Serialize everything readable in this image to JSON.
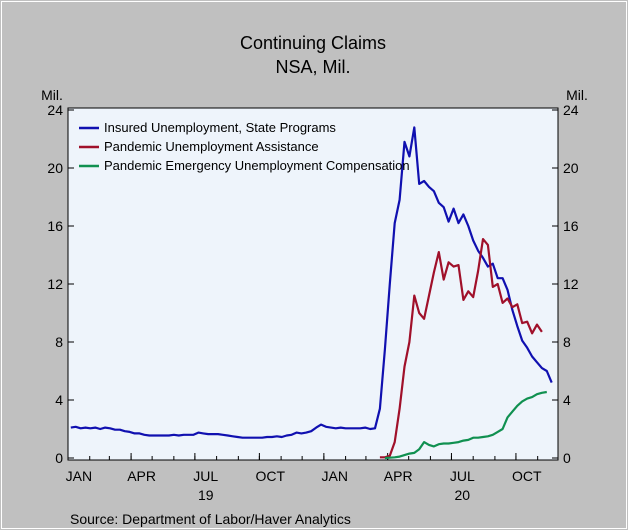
{
  "chart_data": {
    "type": "line",
    "title": "Continuing Claims",
    "subtitle": "NSA, Mil.",
    "left_unit": "Mil.",
    "right_unit": "Mil.",
    "source": "Source:  Department of Labor/Haver Analytics",
    "ylim": [
      0,
      24
    ],
    "yticks": [
      "0",
      "4",
      "8",
      "12",
      "16",
      "20",
      "24"
    ],
    "x_range": [
      "2019-01-01",
      "2020-11-30"
    ],
    "x_ticks": [
      {
        "date": "2019-01-01",
        "label": "JAN"
      },
      {
        "date": "2019-04-01",
        "label": "APR"
      },
      {
        "date": "2019-07-01",
        "label": "JUL"
      },
      {
        "date": "2019-10-01",
        "label": "OCT"
      },
      {
        "date": "2020-01-01",
        "label": "JAN"
      },
      {
        "date": "2020-04-01",
        "label": "APR"
      },
      {
        "date": "2020-07-01",
        "label": "JUL"
      },
      {
        "date": "2020-10-01",
        "label": "OCT"
      }
    ],
    "year_labels": [
      {
        "date": "2019-07-01",
        "label": "19"
      },
      {
        "date": "2020-07-01",
        "label": "20"
      }
    ],
    "plot_background": "#eef4fb",
    "grid": false,
    "legend_position": "top-left",
    "series": [
      {
        "name": "Insured Unemployment, State Programs",
        "color": "#1010b0",
        "points": [
          [
            "2019-01-05",
            2.1
          ],
          [
            "2019-01-12",
            2.15
          ],
          [
            "2019-01-19",
            2.05
          ],
          [
            "2019-01-26",
            2.1
          ],
          [
            "2019-02-02",
            2.05
          ],
          [
            "2019-02-09",
            2.1
          ],
          [
            "2019-02-16",
            2.0
          ],
          [
            "2019-02-23",
            2.1
          ],
          [
            "2019-03-02",
            2.05
          ],
          [
            "2019-03-09",
            1.95
          ],
          [
            "2019-03-16",
            1.95
          ],
          [
            "2019-03-23",
            1.85
          ],
          [
            "2019-03-30",
            1.8
          ],
          [
            "2019-04-06",
            1.7
          ],
          [
            "2019-04-13",
            1.7
          ],
          [
            "2019-04-20",
            1.6
          ],
          [
            "2019-04-27",
            1.55
          ],
          [
            "2019-05-04",
            1.55
          ],
          [
            "2019-05-11",
            1.55
          ],
          [
            "2019-05-18",
            1.55
          ],
          [
            "2019-05-25",
            1.55
          ],
          [
            "2019-06-01",
            1.6
          ],
          [
            "2019-06-08",
            1.55
          ],
          [
            "2019-06-15",
            1.6
          ],
          [
            "2019-06-22",
            1.6
          ],
          [
            "2019-06-29",
            1.6
          ],
          [
            "2019-07-06",
            1.75
          ],
          [
            "2019-07-13",
            1.7
          ],
          [
            "2019-07-20",
            1.65
          ],
          [
            "2019-07-27",
            1.65
          ],
          [
            "2019-08-03",
            1.65
          ],
          [
            "2019-08-10",
            1.6
          ],
          [
            "2019-08-17",
            1.55
          ],
          [
            "2019-08-24",
            1.5
          ],
          [
            "2019-08-31",
            1.45
          ],
          [
            "2019-09-07",
            1.4
          ],
          [
            "2019-09-14",
            1.4
          ],
          [
            "2019-09-21",
            1.4
          ],
          [
            "2019-09-28",
            1.4
          ],
          [
            "2019-10-05",
            1.4
          ],
          [
            "2019-10-12",
            1.45
          ],
          [
            "2019-10-19",
            1.45
          ],
          [
            "2019-10-26",
            1.5
          ],
          [
            "2019-11-02",
            1.45
          ],
          [
            "2019-11-09",
            1.55
          ],
          [
            "2019-11-16",
            1.6
          ],
          [
            "2019-11-23",
            1.75
          ],
          [
            "2019-11-30",
            1.7
          ],
          [
            "2019-12-07",
            1.75
          ],
          [
            "2019-12-14",
            1.85
          ],
          [
            "2019-12-21",
            2.1
          ],
          [
            "2019-12-28",
            2.3
          ],
          [
            "2020-01-04",
            2.15
          ],
          [
            "2020-01-11",
            2.1
          ],
          [
            "2020-01-18",
            2.05
          ],
          [
            "2020-01-25",
            2.1
          ],
          [
            "2020-02-01",
            2.05
          ],
          [
            "2020-02-08",
            2.05
          ],
          [
            "2020-02-15",
            2.05
          ],
          [
            "2020-02-22",
            2.05
          ],
          [
            "2020-02-29",
            2.1
          ],
          [
            "2020-03-07",
            2.0
          ],
          [
            "2020-03-14",
            2.05
          ],
          [
            "2020-03-21",
            3.4
          ],
          [
            "2020-03-28",
            7.5
          ],
          [
            "2020-04-04",
            12.0
          ],
          [
            "2020-04-11",
            16.2
          ],
          [
            "2020-04-18",
            17.8
          ],
          [
            "2020-04-25",
            21.8
          ],
          [
            "2020-05-02",
            20.8
          ],
          [
            "2020-05-09",
            22.8
          ],
          [
            "2020-05-16",
            18.9
          ],
          [
            "2020-05-23",
            19.1
          ],
          [
            "2020-05-30",
            18.7
          ],
          [
            "2020-06-06",
            18.4
          ],
          [
            "2020-06-13",
            17.6
          ],
          [
            "2020-06-20",
            17.3
          ],
          [
            "2020-06-27",
            16.3
          ],
          [
            "2020-07-04",
            17.2
          ],
          [
            "2020-07-11",
            16.2
          ],
          [
            "2020-07-18",
            16.8
          ],
          [
            "2020-07-25",
            16.0
          ],
          [
            "2020-08-01",
            15.0
          ],
          [
            "2020-08-08",
            14.3
          ],
          [
            "2020-08-15",
            13.8
          ],
          [
            "2020-08-22",
            13.2
          ],
          [
            "2020-08-29",
            13.4
          ],
          [
            "2020-09-05",
            12.4
          ],
          [
            "2020-09-12",
            12.4
          ],
          [
            "2020-09-19",
            11.6
          ],
          [
            "2020-09-26",
            10.2
          ],
          [
            "2020-10-03",
            9.1
          ],
          [
            "2020-10-10",
            8.1
          ],
          [
            "2020-10-17",
            7.6
          ],
          [
            "2020-10-24",
            7.0
          ],
          [
            "2020-10-31",
            6.6
          ],
          [
            "2020-11-07",
            6.2
          ],
          [
            "2020-11-14",
            6.0
          ],
          [
            "2020-11-21",
            5.2
          ]
        ]
      },
      {
        "name": "Pandemic Unemployment Assistance",
        "color": "#a0102a",
        "points": [
          [
            "2020-03-21",
            0.05
          ],
          [
            "2020-03-28",
            0.05
          ],
          [
            "2020-04-04",
            0.15
          ],
          [
            "2020-04-11",
            1.1
          ],
          [
            "2020-04-18",
            3.4
          ],
          [
            "2020-04-25",
            6.3
          ],
          [
            "2020-05-02",
            8.0
          ],
          [
            "2020-05-09",
            11.2
          ],
          [
            "2020-05-16",
            10.0
          ],
          [
            "2020-05-23",
            9.6
          ],
          [
            "2020-05-30",
            11.2
          ],
          [
            "2020-06-06",
            12.8
          ],
          [
            "2020-06-13",
            14.2
          ],
          [
            "2020-06-20",
            12.3
          ],
          [
            "2020-06-27",
            13.5
          ],
          [
            "2020-07-04",
            13.2
          ],
          [
            "2020-07-11",
            13.3
          ],
          [
            "2020-07-18",
            10.9
          ],
          [
            "2020-07-25",
            11.5
          ],
          [
            "2020-08-01",
            11.1
          ],
          [
            "2020-08-08",
            12.9
          ],
          [
            "2020-08-15",
            15.1
          ],
          [
            "2020-08-22",
            14.7
          ],
          [
            "2020-08-29",
            11.8
          ],
          [
            "2020-09-05",
            12.0
          ],
          [
            "2020-09-12",
            10.7
          ],
          [
            "2020-09-19",
            11.0
          ],
          [
            "2020-09-26",
            10.4
          ],
          [
            "2020-10-03",
            10.6
          ],
          [
            "2020-10-10",
            9.3
          ],
          [
            "2020-10-17",
            9.4
          ],
          [
            "2020-10-24",
            8.6
          ],
          [
            "2020-10-31",
            9.2
          ],
          [
            "2020-11-07",
            8.7
          ]
        ]
      },
      {
        "name": "Pandemic Emergency Unemployment Compensation",
        "color": "#109050",
        "points": [
          [
            "2020-03-28",
            0.0
          ],
          [
            "2020-04-04",
            0.02
          ],
          [
            "2020-04-11",
            0.05
          ],
          [
            "2020-04-18",
            0.1
          ],
          [
            "2020-04-25",
            0.2
          ],
          [
            "2020-05-02",
            0.3
          ],
          [
            "2020-05-09",
            0.35
          ],
          [
            "2020-05-16",
            0.6
          ],
          [
            "2020-05-23",
            1.1
          ],
          [
            "2020-05-30",
            0.9
          ],
          [
            "2020-06-06",
            0.8
          ],
          [
            "2020-06-13",
            0.95
          ],
          [
            "2020-06-20",
            1.0
          ],
          [
            "2020-06-27",
            1.0
          ],
          [
            "2020-07-04",
            1.05
          ],
          [
            "2020-07-11",
            1.1
          ],
          [
            "2020-07-18",
            1.2
          ],
          [
            "2020-07-25",
            1.25
          ],
          [
            "2020-08-01",
            1.4
          ],
          [
            "2020-08-08",
            1.4
          ],
          [
            "2020-08-15",
            1.45
          ],
          [
            "2020-08-22",
            1.5
          ],
          [
            "2020-08-29",
            1.6
          ],
          [
            "2020-09-05",
            1.8
          ],
          [
            "2020-09-12",
            2.0
          ],
          [
            "2020-09-19",
            2.8
          ],
          [
            "2020-09-26",
            3.2
          ],
          [
            "2020-10-03",
            3.6
          ],
          [
            "2020-10-10",
            3.9
          ],
          [
            "2020-10-17",
            4.1
          ],
          [
            "2020-10-24",
            4.2
          ],
          [
            "2020-10-31",
            4.4
          ],
          [
            "2020-11-07",
            4.5
          ],
          [
            "2020-11-14",
            4.55
          ]
        ]
      }
    ]
  }
}
